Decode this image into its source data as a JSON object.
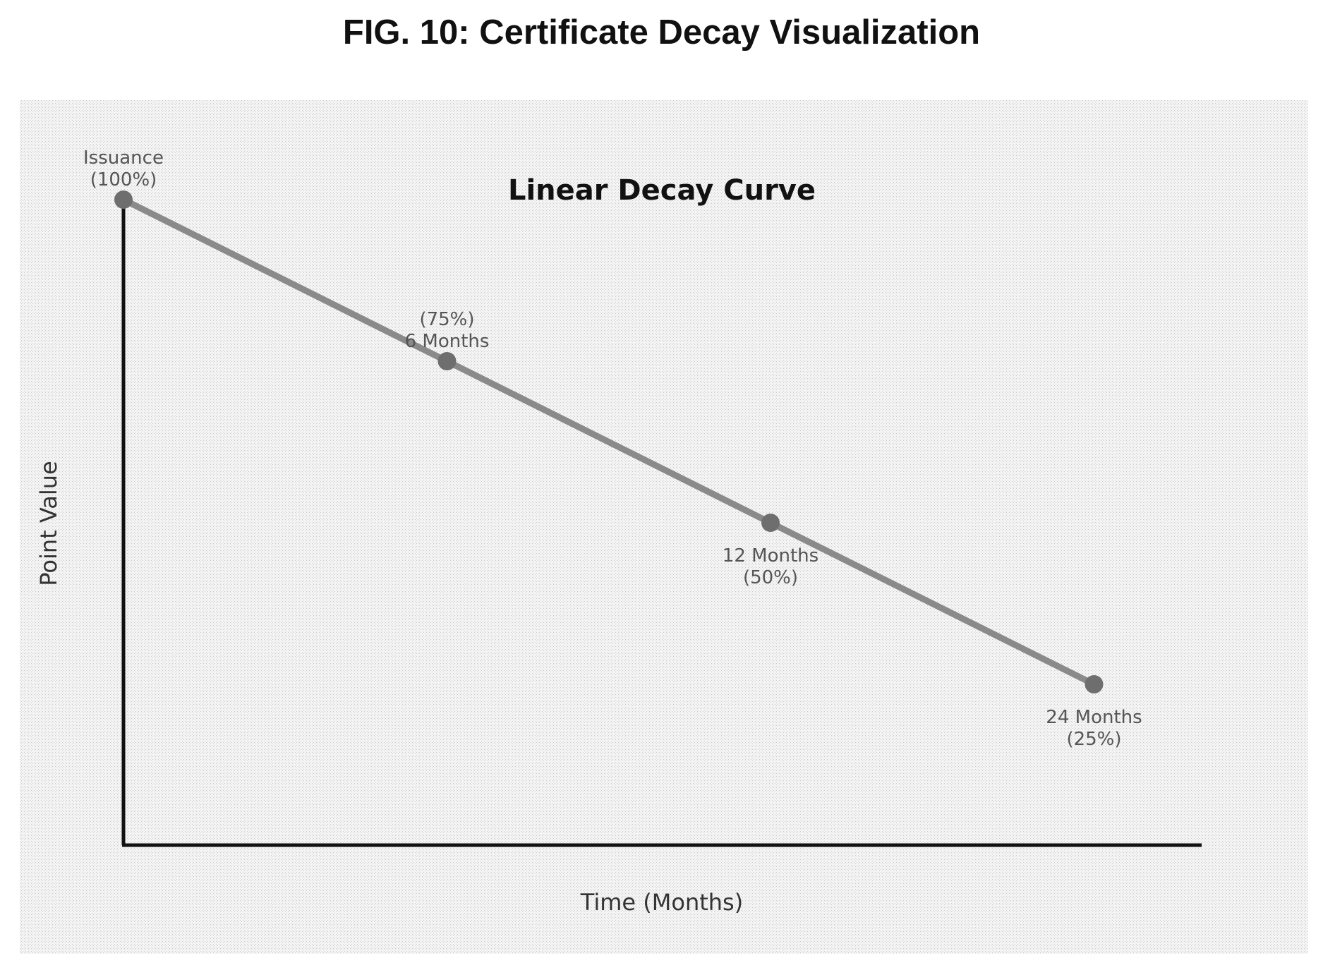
{
  "figure": {
    "title": "FIG. 10: Certificate Decay Visualization"
  },
  "colors": {
    "panel_background": "#ececec",
    "axis": "#111111",
    "line": "#8a8a8a",
    "point": "#6e6e6e",
    "label": "#555555"
  },
  "chart_data": {
    "type": "line",
    "title": "Linear Decay Curve",
    "xlabel": "Time (Months)",
    "ylabel": "Point Value",
    "grid": false,
    "series": [
      {
        "points": [
          {
            "x": 0,
            "y": 100,
            "label_lines": [
              "Issuance",
              "(100%)"
            ],
            "label_position": "above"
          },
          {
            "x": 6,
            "y": 75,
            "label_lines": [
              "(75%)",
              "6 Months"
            ],
            "label_position": "above"
          },
          {
            "x": 12,
            "y": 50,
            "label_lines": [
              "12 Months",
              "(50%)"
            ],
            "label_position": "below"
          },
          {
            "x": 24,
            "y": 25,
            "label_lines": [
              "24 Months",
              "(25%)"
            ],
            "label_position": "below"
          }
        ]
      }
    ]
  }
}
